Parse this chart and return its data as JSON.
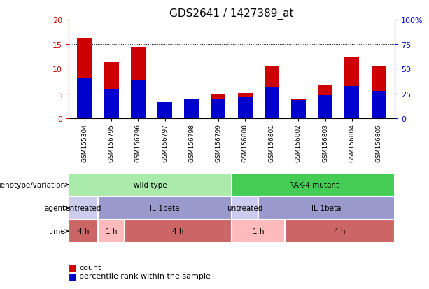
{
  "title": "GDS2641 / 1427389_at",
  "samples": [
    "GSM155304",
    "GSM156795",
    "GSM156796",
    "GSM156797",
    "GSM156798",
    "GSM156799",
    "GSM156800",
    "GSM156801",
    "GSM156802",
    "GSM156803",
    "GSM156804",
    "GSM156805"
  ],
  "count_values": [
    16.1,
    11.4,
    14.5,
    2.5,
    3.8,
    5.0,
    5.1,
    10.6,
    3.8,
    6.8,
    12.4,
    10.5
  ],
  "percentile_values": [
    40.0,
    30.0,
    39.0,
    16.0,
    20.0,
    20.0,
    21.0,
    31.0,
    18.0,
    23.5,
    32.5,
    27.5
  ],
  "count_color": "#cc0000",
  "percentile_color": "#0000cc",
  "ylim_left": [
    0,
    20
  ],
  "ylim_right": [
    0,
    100
  ],
  "yticks_left": [
    0,
    5,
    10,
    15,
    20
  ],
  "yticks_right": [
    0,
    25,
    50,
    75,
    100
  ],
  "ytick_labels_left": [
    "0",
    "5",
    "10",
    "15",
    "20"
  ],
  "ytick_labels_right": [
    "0",
    "25",
    "50",
    "75",
    "100%"
  ],
  "grid_values": [
    5,
    10,
    15
  ],
  "bar_width": 0.55,
  "genotype_row": {
    "label": "genotype/variation",
    "segments": [
      {
        "text": "wild type",
        "start": 0,
        "end": 6,
        "color": "#aaeaaa"
      },
      {
        "text": "IRAK-4 mutant",
        "start": 6,
        "end": 12,
        "color": "#44cc55"
      }
    ]
  },
  "agent_row": {
    "label": "agent",
    "segments": [
      {
        "text": "untreated",
        "start": 0,
        "end": 1,
        "color": "#ccccee"
      },
      {
        "text": "IL-1beta",
        "start": 1,
        "end": 6,
        "color": "#9999cc"
      },
      {
        "text": "untreated",
        "start": 6,
        "end": 7,
        "color": "#ccccee"
      },
      {
        "text": "IL-1beta",
        "start": 7,
        "end": 12,
        "color": "#9999cc"
      }
    ]
  },
  "time_row": {
    "label": "time",
    "segments": [
      {
        "text": "4 h",
        "start": 0,
        "end": 1,
        "color": "#cc6666"
      },
      {
        "text": "1 h",
        "start": 1,
        "end": 2,
        "color": "#ffbbbb"
      },
      {
        "text": "4 h",
        "start": 2,
        "end": 6,
        "color": "#cc6666"
      },
      {
        "text": "1 h",
        "start": 6,
        "end": 8,
        "color": "#ffbbbb"
      },
      {
        "text": "4 h",
        "start": 8,
        "end": 12,
        "color": "#cc6666"
      }
    ]
  }
}
